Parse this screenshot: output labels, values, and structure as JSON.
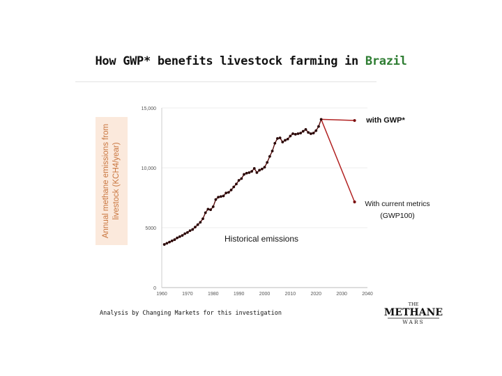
{
  "title": {
    "prefix": "How GWP* benefits livestock farming in ",
    "highlight": "Brazil"
  },
  "colors": {
    "highlight": "#2e7d32",
    "historical": "#5a0e0e",
    "projection": "#b22222",
    "label_bg": "#fbe9dc",
    "label_text": "#c9763f"
  },
  "note": "Analysis by Changing Markets for this investigation",
  "logo": {
    "top": "THE",
    "main": "METHANE",
    "bottom": "WARS"
  },
  "chart_data": {
    "type": "line",
    "ylabel": "Annual methane emissions from livestock (KCH4/year)",
    "xlim": [
      1960,
      2040
    ],
    "ylim": [
      0,
      15000
    ],
    "x_ticks": [
      "1960",
      "1970",
      "1980",
      "1990",
      "2000",
      "2010",
      "2020",
      "2030",
      "2040"
    ],
    "y_ticks": [
      "0",
      "5000",
      "10,000",
      "15,000"
    ],
    "grid": true,
    "annotations": [
      "Historical emissions",
      "with GWP*",
      "With current metrics",
      "(GWP100)"
    ],
    "series": [
      {
        "x": [
          1961,
          1962,
          1963,
          1964,
          1965,
          1966,
          1967,
          1968,
          1969,
          1970,
          1971,
          1972,
          1973,
          1974,
          1975,
          1976,
          1977,
          1978,
          1979,
          1980,
          1981,
          1982,
          1983,
          1984,
          1985,
          1986,
          1987,
          1988,
          1989,
          1990,
          1991,
          1992,
          1993,
          1994,
          1995,
          1996,
          1997,
          1998,
          1999,
          2000,
          2001,
          2002,
          2003,
          2004,
          2005,
          2006,
          2007,
          2008,
          2009,
          2010,
          2011,
          2012,
          2013,
          2014,
          2015,
          2016,
          2017,
          2018,
          2019,
          2020,
          2021,
          2022
        ],
        "y": [
          3600,
          3700,
          3800,
          3900,
          4000,
          4150,
          4250,
          4350,
          4500,
          4600,
          4750,
          4850,
          5050,
          5250,
          5450,
          5750,
          6250,
          6550,
          6500,
          6750,
          7350,
          7550,
          7600,
          7650,
          7900,
          7950,
          8150,
          8400,
          8650,
          8950,
          9100,
          9450,
          9550,
          9600,
          9700,
          9950,
          9600,
          9800,
          9900,
          10050,
          10450,
          10950,
          11400,
          12050,
          12450,
          12500,
          12150,
          12300,
          12400,
          12650,
          12850,
          12800,
          12850,
          12900,
          13050,
          13200,
          12950,
          12850,
          12900,
          13100,
          13450,
          14050
        ]
      },
      {
        "name": "with GWP*",
        "x": [
          2022,
          2035
        ],
        "y": [
          14050,
          13950
        ]
      },
      {
        "name": "With current metrics (GWP100)",
        "x": [
          2022,
          2035
        ],
        "y": [
          14050,
          7150
        ]
      }
    ]
  }
}
